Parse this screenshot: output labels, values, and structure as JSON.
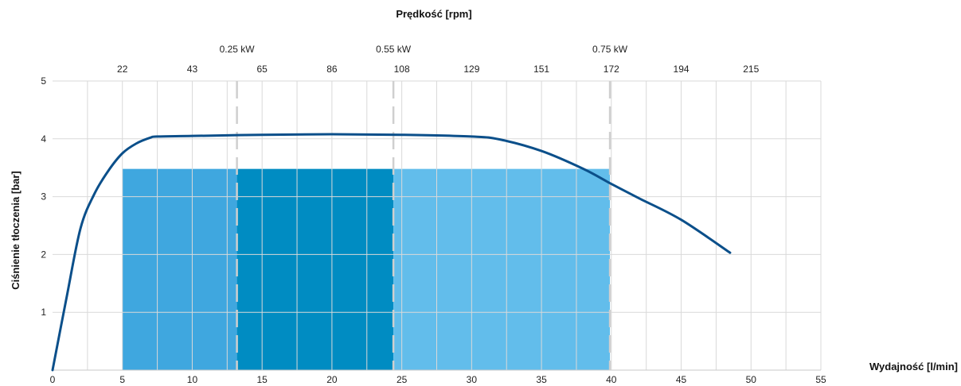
{
  "chart_data": {
    "type": "line",
    "xlabel": "Wydajność [l/min]",
    "ylabel": "Ciśnienie tłoczenia [bar]",
    "top_axis_label": "Prędkość [rpm]",
    "xlim": [
      0,
      55
    ],
    "ylim": [
      0,
      5
    ],
    "x_ticks": [
      0,
      5,
      10,
      15,
      20,
      25,
      30,
      35,
      40,
      45,
      50,
      55
    ],
    "y_ticks": [
      1,
      2,
      3,
      4,
      5
    ],
    "top_ticks": [
      {
        "label": "22",
        "x": 5
      },
      {
        "label": "43",
        "x": 10
      },
      {
        "label": "65",
        "x": 15
      },
      {
        "label": "86",
        "x": 20
      },
      {
        "label": "108",
        "x": 25
      },
      {
        "label": "129",
        "x": 30
      },
      {
        "label": "151",
        "x": 35
      },
      {
        "label": "172",
        "x": 40
      },
      {
        "label": "194",
        "x": 45
      },
      {
        "label": "215",
        "x": 50
      }
    ],
    "motor_markers": [
      {
        "label": "0.25 kW",
        "x": 13.2
      },
      {
        "label": "0.55 kW",
        "x": 24.4
      },
      {
        "label": "0.75 kW",
        "x": 39.9
      }
    ],
    "regions": [
      {
        "x0": 5,
        "x1": 13.2,
        "y1": 3.48,
        "color": "#3fa7df"
      },
      {
        "x0": 13.2,
        "x1": 24.4,
        "y1": 3.48,
        "color": "#008cc2"
      },
      {
        "x0": 24.4,
        "x1": 39.9,
        "y1": 3.48,
        "color": "#62bdeb"
      }
    ],
    "series": [
      {
        "color": "#0b4f8a",
        "x": [
          0,
          1,
          2,
          3,
          4,
          5,
          6,
          7,
          7.5,
          10,
          15,
          20,
          25,
          30,
          32,
          35,
          38,
          40,
          42,
          45,
          48.5
        ],
        "y": [
          0,
          1.25,
          2.45,
          3.05,
          3.45,
          3.75,
          3.92,
          4.02,
          4.04,
          4.05,
          4.07,
          4.08,
          4.07,
          4.04,
          3.99,
          3.79,
          3.48,
          3.22,
          2.97,
          2.6,
          2.03
        ]
      }
    ],
    "grid": true
  }
}
